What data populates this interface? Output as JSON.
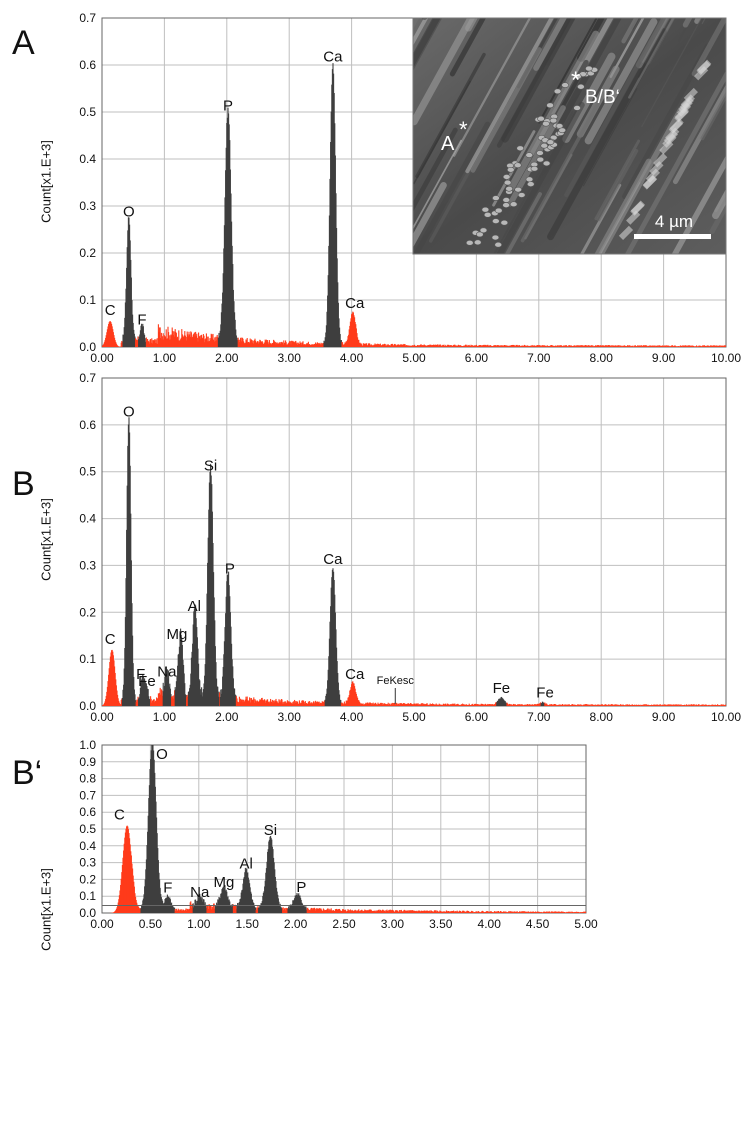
{
  "panel_labels": {
    "a": "A",
    "b": "B",
    "c": "B‘"
  },
  "inset": {
    "labels": {
      "a": "A",
      "b": "B/B‘"
    },
    "scale_bar": "4 µm"
  },
  "colors": {
    "element": "#3f3f3f",
    "background": "#ff3b1a",
    "grid": "#bfbfbf"
  },
  "chart_data": [
    {
      "type": "area",
      "title": "",
      "xlabel": "",
      "ylabel": "Count[x1.E+3]",
      "xlim": [
        0,
        10
      ],
      "ylim": [
        0,
        0.7
      ],
      "xticks": [
        "0.00",
        "1.00",
        "2.00",
        "3.00",
        "4.00",
        "5.00",
        "6.00",
        "7.00",
        "8.00",
        "9.00",
        "10.00"
      ],
      "yticks": [
        "0.0",
        "0.1",
        "0.2",
        "0.3",
        "0.4",
        "0.5",
        "0.6",
        "0.7"
      ],
      "grid": true,
      "series": [
        {
          "peaks": [
            {
              "x": 0.13,
              "y": 0.055,
              "w": 0.05,
              "c": "bg"
            },
            {
              "x": 0.43,
              "y": 0.265,
              "w": 0.035,
              "c": "el"
            },
            {
              "x": 0.64,
              "y": 0.035,
              "w": 0.03,
              "c": "el"
            },
            {
              "x": 2.02,
              "y": 0.49,
              "w": 0.05,
              "c": "el"
            },
            {
              "x": 3.7,
              "y": 0.595,
              "w": 0.045,
              "c": "el"
            },
            {
              "x": 4.02,
              "y": 0.07,
              "w": 0.045,
              "c": "bg"
            }
          ]
        }
      ],
      "annotations": [
        {
          "label": "C",
          "x": 0.13,
          "y": 0.055
        },
        {
          "label": "O",
          "x": 0.43,
          "y": 0.265
        },
        {
          "label": "F",
          "x": 0.64,
          "y": 0.035
        },
        {
          "label": "P",
          "x": 2.02,
          "y": 0.49
        },
        {
          "label": "Ca",
          "x": 3.7,
          "y": 0.595
        },
        {
          "label": "Ca",
          "x": 4.05,
          "y": 0.07
        }
      ]
    },
    {
      "type": "area",
      "title": "",
      "xlabel": "",
      "ylabel": "Count[x1.E+3]",
      "xlim": [
        0,
        10
      ],
      "ylim": [
        0,
        0.7
      ],
      "xticks": [
        "0.00",
        "1.00",
        "2.00",
        "3.00",
        "4.00",
        "5.00",
        "6.00",
        "7.00",
        "8.00",
        "9.00",
        "10.00"
      ],
      "yticks": [
        "0.0",
        "0.1",
        "0.2",
        "0.3",
        "0.4",
        "0.5",
        "0.6",
        "0.7"
      ],
      "grid": true,
      "series": [
        {
          "peaks": [
            {
              "x": 0.16,
              "y": 0.12,
              "w": 0.05,
              "c": "bg"
            },
            {
              "x": 0.43,
              "y": 0.605,
              "w": 0.035,
              "c": "el"
            },
            {
              "x": 0.65,
              "y": 0.045,
              "w": 0.03,
              "c": "el"
            },
            {
              "x": 0.71,
              "y": 0.03,
              "w": 0.03,
              "c": "el"
            },
            {
              "x": 1.04,
              "y": 0.05,
              "w": 0.03,
              "c": "el"
            },
            {
              "x": 1.26,
              "y": 0.13,
              "w": 0.035,
              "c": "el"
            },
            {
              "x": 1.49,
              "y": 0.19,
              "w": 0.04,
              "c": "el"
            },
            {
              "x": 1.74,
              "y": 0.49,
              "w": 0.045,
              "c": "el"
            },
            {
              "x": 2.02,
              "y": 0.27,
              "w": 0.045,
              "c": "el"
            },
            {
              "x": 3.7,
              "y": 0.29,
              "w": 0.045,
              "c": "el"
            },
            {
              "x": 4.02,
              "y": 0.045,
              "w": 0.045,
              "c": "bg"
            },
            {
              "x": 6.4,
              "y": 0.015,
              "w": 0.05,
              "c": "el"
            },
            {
              "x": 7.06,
              "y": 0.005,
              "w": 0.04,
              "c": "el"
            }
          ]
        }
      ],
      "annotations": [
        {
          "label": "C",
          "x": 0.13,
          "y": 0.12
        },
        {
          "label": "O",
          "x": 0.43,
          "y": 0.605
        },
        {
          "label": "F",
          "x": 0.62,
          "y": 0.045
        },
        {
          "label": "Fe",
          "x": 0.72,
          "y": 0.03
        },
        {
          "label": "Na",
          "x": 1.04,
          "y": 0.05
        },
        {
          "label": "Mg",
          "x": 1.2,
          "y": 0.13
        },
        {
          "label": "Al",
          "x": 1.48,
          "y": 0.19
        },
        {
          "label": "Si",
          "x": 1.74,
          "y": 0.49
        },
        {
          "label": "P",
          "x": 2.05,
          "y": 0.27
        },
        {
          "label": "Ca",
          "x": 3.7,
          "y": 0.29
        },
        {
          "label": "Ca",
          "x": 4.05,
          "y": 0.045
        },
        {
          "label": "FeKesc",
          "x": 4.7,
          "y": 0.005
        },
        {
          "label": "Fe",
          "x": 6.4,
          "y": 0.015
        },
        {
          "label": "Fe",
          "x": 7.1,
          "y": 0.005
        }
      ]
    },
    {
      "type": "area",
      "title": "",
      "xlabel": "",
      "ylabel": "Count[x1.E+3]",
      "xlim": [
        0,
        5
      ],
      "ylim": [
        0,
        1.0
      ],
      "xticks": [
        "0.00",
        "0.50",
        "1.00",
        "1.50",
        "2.00",
        "2.50",
        "3.00",
        "3.50",
        "4.00",
        "4.50",
        "5.00"
      ],
      "yticks": [
        "0.0",
        "0.1",
        "0.2",
        "0.3",
        "0.4",
        "0.5",
        "0.6",
        "0.7",
        "0.8",
        "0.9",
        "1.0"
      ],
      "grid": true,
      "series": [
        {
          "peaks": [
            {
              "x": 0.26,
              "y": 0.52,
              "w": 0.045,
              "c": "bg"
            },
            {
              "x": 0.52,
              "y": 1.0,
              "w": 0.04,
              "c": "el"
            },
            {
              "x": 0.68,
              "y": 0.085,
              "w": 0.03,
              "c": "el"
            },
            {
              "x": 1.01,
              "y": 0.06,
              "w": 0.03,
              "c": "el"
            },
            {
              "x": 1.26,
              "y": 0.12,
              "w": 0.035,
              "c": "el"
            },
            {
              "x": 1.49,
              "y": 0.23,
              "w": 0.035,
              "c": "el"
            },
            {
              "x": 1.74,
              "y": 0.43,
              "w": 0.04,
              "c": "el"
            },
            {
              "x": 2.02,
              "y": 0.09,
              "w": 0.04,
              "c": "el"
            }
          ]
        }
      ],
      "annotations": [
        {
          "label": "C",
          "x": 0.18,
          "y": 0.52
        },
        {
          "label": "O",
          "x": 0.62,
          "y": 1.0
        },
        {
          "label": "F",
          "x": 0.68,
          "y": 0.085
        },
        {
          "label": "Na",
          "x": 1.01,
          "y": 0.06
        },
        {
          "label": "Mg",
          "x": 1.26,
          "y": 0.12
        },
        {
          "label": "Al",
          "x": 1.49,
          "y": 0.23
        },
        {
          "label": "Si",
          "x": 1.74,
          "y": 0.43
        },
        {
          "label": "P",
          "x": 2.06,
          "y": 0.09
        }
      ]
    }
  ]
}
